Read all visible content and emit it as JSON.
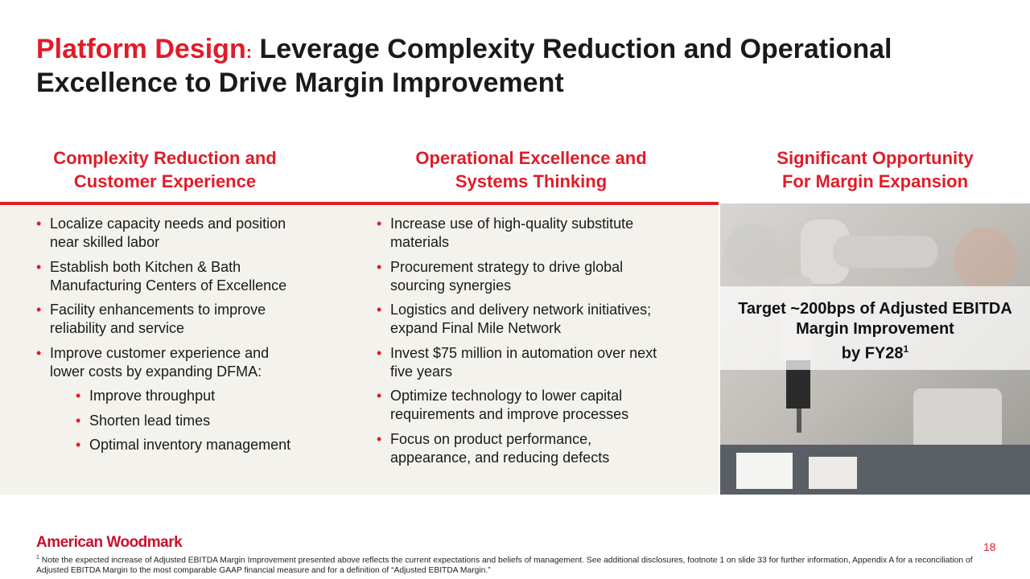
{
  "header": {
    "title_highlight": "Platform Design",
    "title_separator": ":",
    "title_text": "Leverage Complexity Reduction and Operational Excellence to Drive Margin Improvement"
  },
  "columns": [
    {
      "heading": [
        "Complexity Reduction and",
        "Customer Experience"
      ],
      "bullets": [
        "Localize capacity needs and position near skilled labor",
        "Establish both Kitchen & Bath Manufacturing Centers of Excellence",
        "Facility enhancements to improve reliability and service",
        "Improve customer experience and lower costs by expanding DFMA:"
      ],
      "sub_bullets": [
        "Improve throughput",
        "Shorten lead times",
        "Optimal inventory management"
      ]
    },
    {
      "heading": [
        "Operational Excellence and",
        "Systems Thinking"
      ],
      "bullets": [
        "Increase use of high-quality substitute materials",
        "Procurement strategy to drive global sourcing synergies",
        "Logistics and delivery network initiatives; expand Final Mile Network",
        "Invest $75 million in automation over next five years",
        "Optimize technology to lower capital requirements and improve processes",
        "Focus on product performance, appearance, and reducing defects"
      ]
    },
    {
      "heading": [
        "Significant Opportunity",
        "For Margin Expansion"
      ]
    }
  ],
  "callout": {
    "lines": [
      "Target ~200bps of Adjusted EBITDA",
      "Margin Improvement",
      "by FY28"
    ],
    "superscript": "1"
  },
  "footer": {
    "logo": "American Woodmark",
    "page_number": "18",
    "footnote_marker": "1",
    "footnote": "Note the expected increase of Adjusted EBITDA Margin Improvement presented above reflects the current expectations and beliefs of management. See additional disclosures, footnote 1 on slide 33 for further information, Appendix A for a reconciliation of Adjusted EBITDA Margin to the most comparable GAAP financial measure and for a definition of “Adjusted EBITDA Margin.”"
  }
}
